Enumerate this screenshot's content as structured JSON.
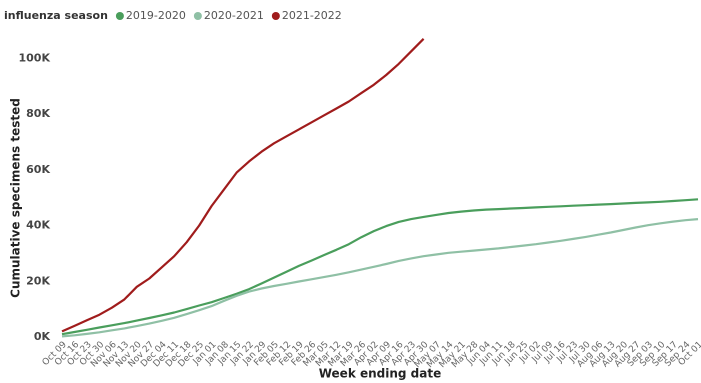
{
  "chart_data": {
    "type": "line",
    "legend_title": "influenza season",
    "y_label": "Cumulative specimens tested",
    "x_label": "Week ending date",
    "categories": [
      "Oct 09",
      "Oct 16",
      "Oct 23",
      "Oct 30",
      "Nov 06",
      "Nov 13",
      "Nov 20",
      "Nov 27",
      "Dec 04",
      "Dec 11",
      "Dec 18",
      "Dec 25",
      "Jan 01",
      "Jan 08",
      "Jan 15",
      "Jan 22",
      "Jan 29",
      "Feb 05",
      "Feb 12",
      "Feb 19",
      "Feb 26",
      "Mar 05",
      "Mar 12",
      "Mar 19",
      "Mar 26",
      "Apr 02",
      "Apr 09",
      "Apr 16",
      "Apr 23",
      "Apr 30",
      "May 07",
      "May 14",
      "May 21",
      "May 28",
      "Jun 04",
      "Jun 11",
      "Jun 18",
      "Jun 25",
      "Jul 02",
      "Jul 09",
      "Jul 16",
      "Jul 23",
      "Jul 30",
      "Aug 06",
      "Aug 13",
      "Aug 20",
      "Aug 27",
      "Sep 03",
      "Sep 10",
      "Sep 17",
      "Sep 24",
      "Oct 01"
    ],
    "series": [
      {
        "name": "2019-2020",
        "color": "#4a9e5c",
        "values": [
          1000,
          1800,
          2600,
          3400,
          4200,
          5000,
          5900,
          6800,
          7800,
          8800,
          10000,
          11300,
          12500,
          14000,
          15500,
          17200,
          19200,
          21300,
          23400,
          25500,
          27400,
          29400,
          31300,
          33300,
          35800,
          38000,
          39800,
          41300,
          42300,
          43100,
          43800,
          44500,
          45000,
          45400,
          45700,
          45900,
          46100,
          46300,
          46500,
          46700,
          46900,
          47100,
          47300,
          47500,
          47700,
          47900,
          48100,
          48300,
          48500,
          48800,
          49100,
          49400
        ]
      },
      {
        "name": "2020-2021",
        "color": "#8fc0a5",
        "values": [
          200,
          600,
          1100,
          1700,
          2400,
          3100,
          3900,
          4800,
          5800,
          6900,
          8200,
          9600,
          11100,
          13000,
          14800,
          16300,
          17400,
          18300,
          19100,
          19900,
          20700,
          21500,
          22300,
          23200,
          24200,
          25200,
          26200,
          27300,
          28200,
          29000,
          29600,
          30200,
          30600,
          31000,
          31400,
          31800,
          32300,
          32800,
          33300,
          33900,
          34500,
          35200,
          35900,
          36700,
          37500,
          38400,
          39300,
          40100,
          40800,
          41400,
          41900,
          42300
        ]
      },
      {
        "name": "2021-2022",
        "color": "#a01c1c",
        "values": [
          2000,
          4000,
          6000,
          8000,
          10500,
          13500,
          18000,
          21000,
          25000,
          29000,
          34000,
          40000,
          47000,
          53000,
          59000,
          63000,
          66500,
          69500,
          72000,
          74500,
          77000,
          79500,
          82000,
          84500,
          87500,
          90500,
          94000,
          98000,
          102500,
          107000,
          null,
          null,
          null,
          null,
          null,
          null,
          null,
          null,
          null,
          null,
          null,
          null,
          null,
          null,
          null,
          null,
          null,
          null,
          null,
          null,
          null,
          null
        ]
      }
    ],
    "ylim": [
      0,
      108000
    ],
    "yticks": [
      {
        "value": 0,
        "label": "0K"
      },
      {
        "value": 20000,
        "label": "20K"
      },
      {
        "value": 40000,
        "label": "40K"
      },
      {
        "value": 60000,
        "label": "60K"
      },
      {
        "value": 80000,
        "label": "80K"
      },
      {
        "value": 100000,
        "label": "100K"
      }
    ],
    "legend": "top-left"
  }
}
